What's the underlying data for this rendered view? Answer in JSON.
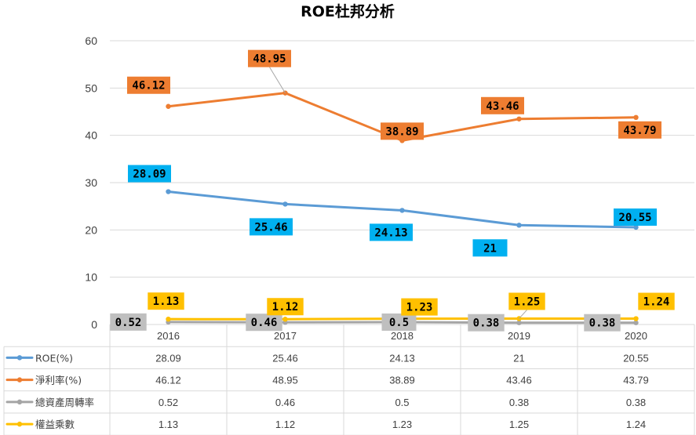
{
  "chart_data": {
    "type": "line",
    "title": "ROE杜邦分析",
    "categories": [
      "2016",
      "2017",
      "2018",
      "2019",
      "2020"
    ],
    "ylim": [
      0,
      60
    ],
    "yticks": [
      0,
      10,
      20,
      30,
      40,
      50,
      60
    ],
    "grid": true,
    "legend": "data-table",
    "series": [
      {
        "name": "ROE(%)",
        "values": [
          28.09,
          25.46,
          24.13,
          21,
          20.55
        ],
        "color": "#5b9bd5",
        "label_color": "#00b0f0"
      },
      {
        "name": "淨利率(%)",
        "values": [
          46.12,
          48.95,
          38.89,
          43.46,
          43.79
        ],
        "color": "#ed7d31",
        "label_color": "#ed7d31"
      },
      {
        "name": "總資產周轉率",
        "values": [
          0.52,
          0.46,
          0.5,
          0.38,
          0.38
        ],
        "color": "#a5a5a5",
        "label_color": "#bfbfbf"
      },
      {
        "name": "權益乘數",
        "values": [
          1.13,
          1.12,
          1.23,
          1.25,
          1.24
        ],
        "color": "#ffc000",
        "label_color": "#ffc000"
      }
    ]
  }
}
